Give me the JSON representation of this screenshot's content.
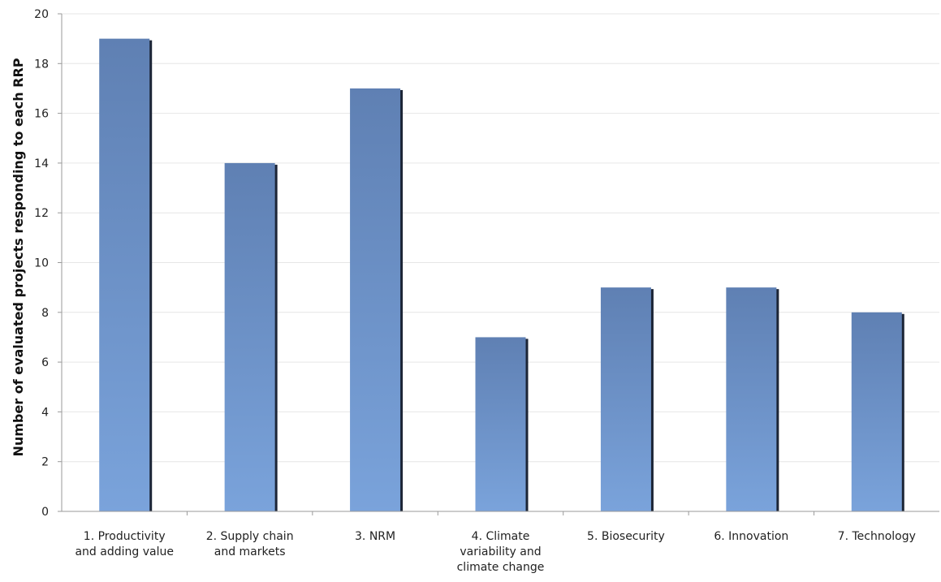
{
  "chart_data": {
    "type": "bar",
    "title": "",
    "xlabel": "",
    "ylabel": "Number of evaluated projects responding to each RRP",
    "categories": [
      [
        "1. Productivity",
        "and adding value"
      ],
      [
        "2. Supply chain",
        "and markets"
      ],
      [
        "3. NRM"
      ],
      [
        "4. Climate",
        "variability and",
        "climate change"
      ],
      [
        "5. Biosecurity"
      ],
      [
        "6. Innovation"
      ],
      [
        "7. Technology"
      ]
    ],
    "values": [
      19,
      14,
      17,
      7,
      9,
      9,
      8
    ],
    "ylim": [
      0,
      20
    ],
    "yticks": [
      0,
      2,
      4,
      6,
      8,
      10,
      12,
      14,
      16,
      18,
      20
    ],
    "grid": true,
    "legend": "none",
    "colors": {
      "bar_top": "#5f80b3",
      "bar_bottom": "#7aa3db",
      "bar_shadow": "#1c2536",
      "grid": "#e6e6e6",
      "axis": "#9a9a9a"
    }
  }
}
